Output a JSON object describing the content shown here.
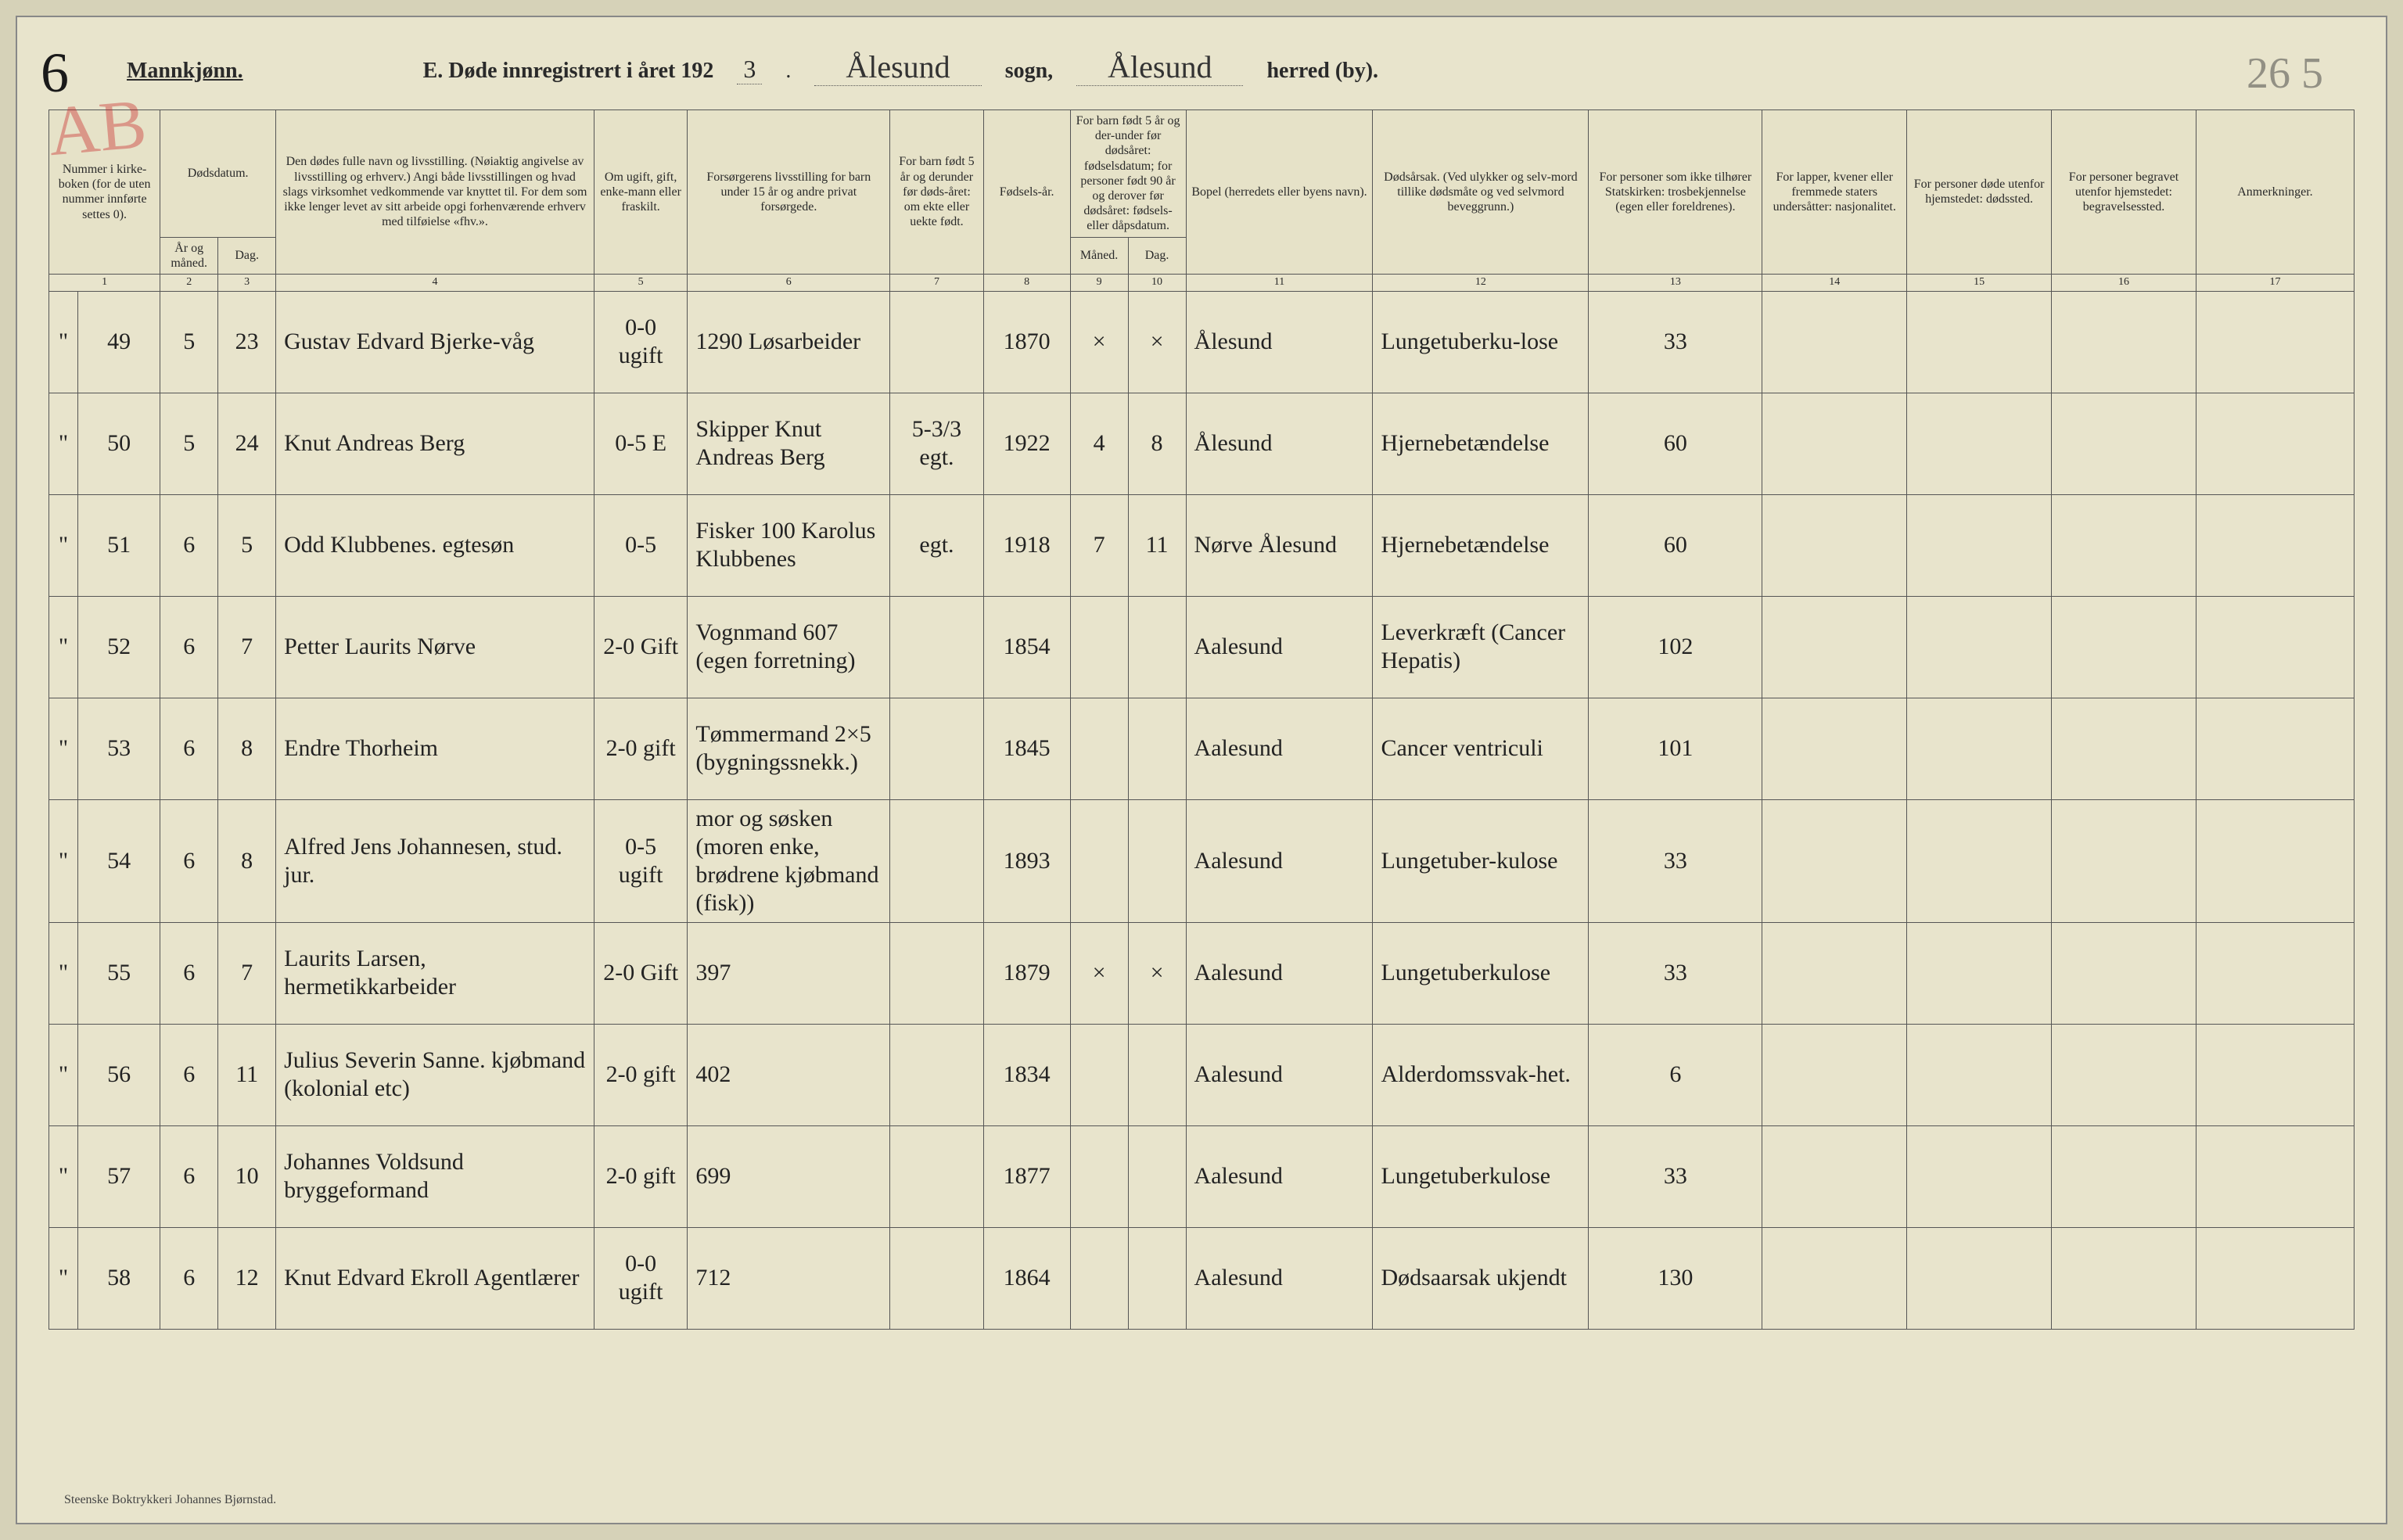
{
  "page_number_left": "6",
  "stamp": "AB",
  "page_number_right": "26 5",
  "header": {
    "gender": "Mannkjønn.",
    "title_prefix": "E.  Døde innregistrert i året 192",
    "year_suffix": "3",
    "period": ".",
    "sogn_value": "Ålesund",
    "sogn_label": "sogn,",
    "herred_value": "Ålesund",
    "herred_label": "herred (by)."
  },
  "columns": {
    "c1": "Nummer i kirke-boken (for de uten nummer innførte settes 0).",
    "c2a": "Dødsdatum.",
    "c2": "År og måned.",
    "c3": "Dag.",
    "c4": "Den dødes fulle navn og livsstilling. (Nøiaktig angivelse av livsstilling og erhverv.) Angi både livsstillingen og hvad slags virksomhet vedkommende var knyttet til. For dem som ikke lenger levet av sitt arbeide opgi forhenværende erhverv med tilføielse «fhv.».",
    "c5": "Om ugift, gift, enke-mann eller fraskilt.",
    "c6": "Forsørgerens livsstilling for barn under 15 år og andre privat forsørgede.",
    "c7": "For barn født 5 år og derunder før døds-året: om ekte eller uekte født.",
    "c8": "Fødsels-år.",
    "c9_10": "For barn født 5 år og der-under før dødsåret: fødselsdatum; for personer født 90 år og derover før dødsåret: fødsels- eller dåpsdatum.",
    "c9": "Måned.",
    "c10": "Dag.",
    "c11": "Bopel (herredets eller byens navn).",
    "c12": "Dødsårsak. (Ved ulykker og selv-mord tillike dødsmåte og ved selvmord beveggrunn.)",
    "c13": "For personer som ikke tilhører Statskirken: trosbekjennelse (egen eller foreldrenes).",
    "c14": "For lapper, kvener eller fremmede staters undersåtter: nasjonalitet.",
    "c15": "For personer døde utenfor hjemstedet: dødssted.",
    "c16": "For personer begravet utenfor hjemstedet: begravelsessted.",
    "c17": "Anmerkninger."
  },
  "colnums": [
    "1",
    "2",
    "3",
    "4",
    "5",
    "6",
    "7",
    "8",
    "9",
    "10",
    "11",
    "12",
    "13",
    "14",
    "15",
    "16",
    "17"
  ],
  "rows": [
    {
      "mark": "\"",
      "num": "49",
      "mon": "5",
      "day": "23",
      "name": "Gustav Edvard Bjerke-våg",
      "status": "0-0 ugift",
      "provider": "1290 Løsarbeider",
      "ekte": "",
      "born": "1870",
      "bm": "×",
      "bd": "×",
      "bopel": "Ålesund",
      "cause": "Lungetuberku-lose",
      "c13": "33",
      "c14": "",
      "c15": "",
      "c16": "",
      "c17": ""
    },
    {
      "mark": "\"",
      "num": "50",
      "mon": "5",
      "day": "24",
      "name": "Knut Andreas Berg",
      "status": "0-5 E",
      "provider": "Skipper Knut Andreas Berg",
      "ekte": "5-3/3 egt.",
      "born": "1922",
      "bm": "4",
      "bd": "8",
      "bopel": "Ålesund",
      "cause": "Hjernebetændelse",
      "c13": "60",
      "c14": "",
      "c15": "",
      "c16": "",
      "c17": ""
    },
    {
      "mark": "\"",
      "num": "51",
      "mon": "6",
      "day": "5",
      "name": "Odd Klubbenes. egtesøn",
      "status": "0-5",
      "provider": "Fisker 100 Karolus Klubbenes",
      "ekte": "egt.",
      "born": "1918",
      "bm": "7",
      "bd": "11",
      "bopel": "Nørve Ålesund",
      "cause": "Hjernebetændelse",
      "c13": "60",
      "c14": "",
      "c15": "",
      "c16": "",
      "c17": ""
    },
    {
      "mark": "\"",
      "num": "52",
      "mon": "6",
      "day": "7",
      "name": "Petter Laurits Nørve",
      "status": "2-0 Gift",
      "provider": "Vognmand 607 (egen forretning)",
      "ekte": "",
      "born": "1854",
      "bm": "",
      "bd": "",
      "bopel": "Aalesund",
      "cause": "Leverkræft (Cancer Hepatis)",
      "c13": "102",
      "c14": "",
      "c15": "",
      "c16": "",
      "c17": ""
    },
    {
      "mark": "\"",
      "num": "53",
      "mon": "6",
      "day": "8",
      "name": "Endre Thorheim",
      "status": "2-0 gift",
      "provider": "Tømmermand 2×5 (bygningssnekk.)",
      "ekte": "",
      "born": "1845",
      "bm": "",
      "bd": "",
      "bopel": "Aalesund",
      "cause": "Cancer ventriculi",
      "c13": "101",
      "c14": "",
      "c15": "",
      "c16": "",
      "c17": ""
    },
    {
      "mark": "\"",
      "num": "54",
      "mon": "6",
      "day": "8",
      "name": "Alfred Jens Johannesen, stud. jur.",
      "status": "0-5 ugift",
      "provider": "mor og søsken (moren enke, brødrene kjøbmand (fisk))",
      "ekte": "",
      "born": "1893",
      "bm": "",
      "bd": "",
      "bopel": "Aalesund",
      "cause": "Lungetuber-kulose",
      "c13": "33",
      "c14": "",
      "c15": "",
      "c16": "",
      "c17": ""
    },
    {
      "mark": "\"",
      "num": "55",
      "mon": "6",
      "day": "7",
      "name": "Laurits Larsen, hermetikkarbeider",
      "status": "2-0 Gift",
      "provider": "397",
      "ekte": "",
      "born": "1879",
      "bm": "×",
      "bd": "×",
      "bopel": "Aalesund",
      "cause": "Lungetuberkulose",
      "c13": "33",
      "c14": "",
      "c15": "",
      "c16": "",
      "c17": ""
    },
    {
      "mark": "\"",
      "num": "56",
      "mon": "6",
      "day": "11",
      "name": "Julius Severin Sanne. kjøbmand (kolonial etc)",
      "status": "2-0 gift",
      "provider": "402",
      "ekte": "",
      "born": "1834",
      "bm": "",
      "bd": "",
      "bopel": "Aalesund",
      "cause": "Alderdomssvak-het.",
      "c13": "6",
      "c14": "",
      "c15": "",
      "c16": "",
      "c17": ""
    },
    {
      "mark": "\"",
      "num": "57",
      "mon": "6",
      "day": "10",
      "name": "Johannes Voldsund bryggeformand",
      "status": "2-0 gift",
      "provider": "699",
      "ekte": "",
      "born": "1877",
      "bm": "",
      "bd": "",
      "bopel": "Aalesund",
      "cause": "Lungetuberkulose",
      "c13": "33",
      "c14": "",
      "c15": "",
      "c16": "",
      "c17": ""
    },
    {
      "mark": "\"",
      "num": "58",
      "mon": "6",
      "day": "12",
      "name": "Knut Edvard Ekroll Agentlærer",
      "status": "0-0 ugift",
      "provider": "712",
      "ekte": "",
      "born": "1864",
      "bm": "",
      "bd": "",
      "bopel": "Aalesund",
      "cause": "Dødsaarsak ukjendt",
      "c13": "130",
      "c14": "",
      "c15": "",
      "c16": "",
      "c17": ""
    }
  ],
  "footer": "Steenske Boktrykkeri Johannes Bjørnstad.",
  "colors": {
    "page_bg": "#e8e4cc",
    "body_bg": "#d6d2b8",
    "border": "#555555",
    "ink": "#2a2a2a",
    "red_stamp": "rgba(200,40,40,0.4)"
  },
  "col_widths_pct": [
    1.3,
    3.7,
    2.6,
    2.6,
    14.3,
    4.2,
    9.1,
    4.2,
    3.9,
    2.6,
    2.6,
    8.4,
    9.7,
    7.8,
    6.5,
    6.5,
    6.5,
    7.1
  ]
}
